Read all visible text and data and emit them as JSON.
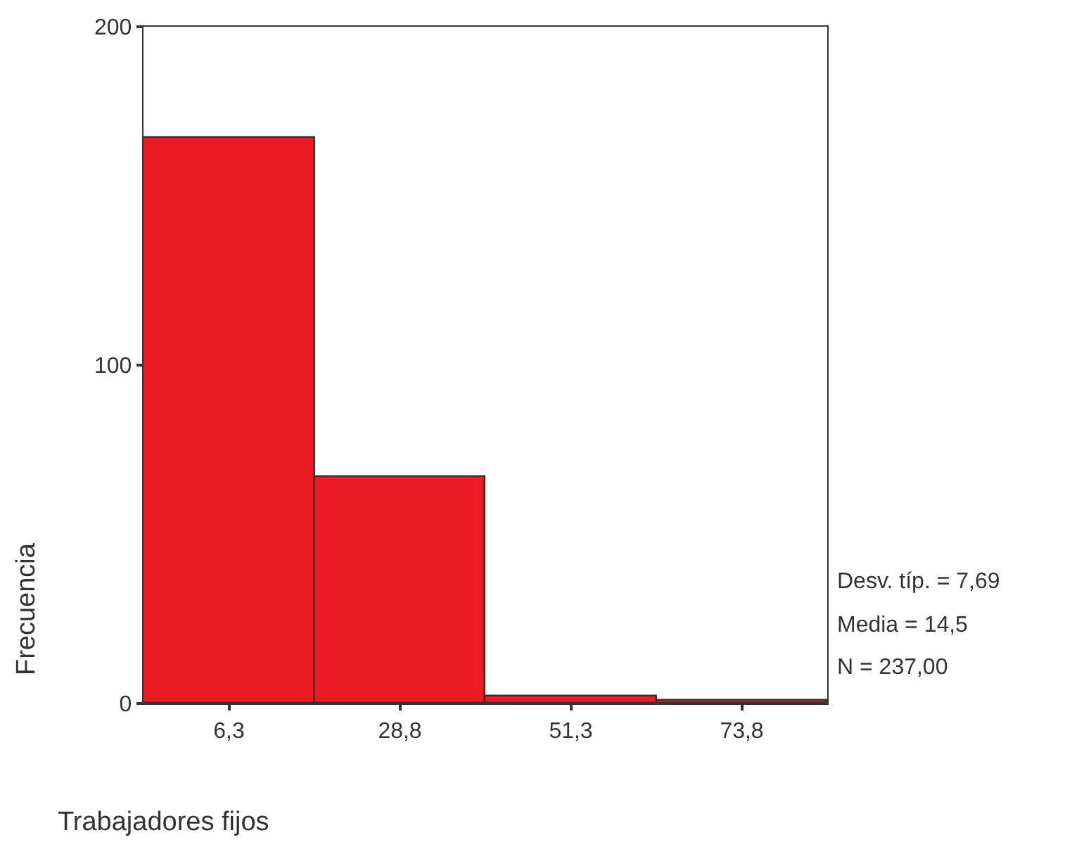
{
  "chart_data": {
    "type": "histogram",
    "xlabel": "Trabajadores fijos",
    "ylabel": "Frecuencia",
    "bins": [
      -4.95,
      17.55,
      40.05,
      62.55,
      85.05
    ],
    "values": [
      167,
      67,
      2,
      1
    ],
    "color": "#ed1c24",
    "xlim": [
      -4.95,
      85.05
    ],
    "xticks": [
      {
        "value": 6.3,
        "label": "6,3"
      },
      {
        "value": 28.8,
        "label": "28,8"
      },
      {
        "value": 51.3,
        "label": "51,3"
      },
      {
        "value": 73.8,
        "label": "73,8"
      }
    ],
    "ylim": [
      0,
      200
    ],
    "yticks": [
      0,
      100,
      200
    ],
    "annotations": [
      "Desv. típ. = 7,69",
      "Media = 14,5",
      "N = 237,00"
    ]
  }
}
